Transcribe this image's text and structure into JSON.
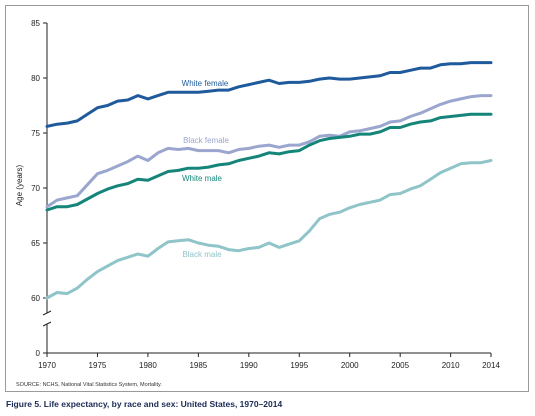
{
  "chart_data": {
    "type": "line",
    "ylabel": "Age (years)",
    "xlabel": "",
    "xlim": [
      1970,
      2014
    ],
    "ylim": [
      60,
      85
    ],
    "y_break": true,
    "y_tick_labels": [
      "0",
      "60",
      "65",
      "70",
      "75",
      "80",
      "85"
    ],
    "x_tick_labels": [
      "1970",
      "1975",
      "1980",
      "1985",
      "1990",
      "1995",
      "2000",
      "2005",
      "2010",
      "2014"
    ],
    "grid": false,
    "x": [
      1970,
      1971,
      1972,
      1973,
      1974,
      1975,
      1976,
      1977,
      1978,
      1979,
      1980,
      1981,
      1982,
      1983,
      1984,
      1985,
      1986,
      1987,
      1988,
      1989,
      1990,
      1991,
      1992,
      1993,
      1994,
      1995,
      1996,
      1997,
      1998,
      1999,
      2000,
      2001,
      2002,
      2003,
      2004,
      2005,
      2006,
      2007,
      2008,
      2009,
      2010,
      2011,
      2012,
      2013,
      2014
    ],
    "series": [
      {
        "name": "White female",
        "color": "#1f5a9c",
        "values": [
          75.6,
          75.8,
          75.9,
          76.1,
          76.7,
          77.3,
          77.5,
          77.9,
          78.0,
          78.4,
          78.1,
          78.4,
          78.7,
          78.7,
          78.7,
          78.7,
          78.8,
          78.9,
          78.9,
          79.2,
          79.4,
          79.6,
          79.8,
          79.5,
          79.6,
          79.6,
          79.7,
          79.9,
          80.0,
          79.9,
          79.9,
          80.0,
          80.1,
          80.2,
          80.5,
          80.5,
          80.7,
          80.9,
          80.9,
          81.2,
          81.3,
          81.3,
          81.4,
          81.4,
          81.4
        ]
      },
      {
        "name": "Black female",
        "color": "#9ba6cf",
        "values": [
          68.3,
          68.9,
          69.1,
          69.3,
          70.3,
          71.3,
          71.6,
          72.0,
          72.4,
          72.9,
          72.5,
          73.2,
          73.6,
          73.5,
          73.6,
          73.4,
          73.4,
          73.4,
          73.2,
          73.5,
          73.6,
          73.8,
          73.9,
          73.7,
          73.9,
          73.9,
          74.2,
          74.7,
          74.8,
          74.7,
          75.1,
          75.2,
          75.4,
          75.6,
          76.0,
          76.1,
          76.5,
          76.8,
          77.2,
          77.6,
          77.9,
          78.1,
          78.3,
          78.4,
          78.4
        ]
      },
      {
        "name": "White male",
        "color": "#15857a",
        "values": [
          68.0,
          68.3,
          68.3,
          68.5,
          69.0,
          69.5,
          69.9,
          70.2,
          70.4,
          70.8,
          70.7,
          71.1,
          71.5,
          71.6,
          71.8,
          71.8,
          71.9,
          72.1,
          72.2,
          72.5,
          72.7,
          72.9,
          73.2,
          73.1,
          73.3,
          73.4,
          73.9,
          74.3,
          74.5,
          74.6,
          74.7,
          74.9,
          74.9,
          75.1,
          75.5,
          75.5,
          75.8,
          76.0,
          76.1,
          76.4,
          76.5,
          76.6,
          76.7,
          76.7,
          76.7
        ]
      },
      {
        "name": "Black male",
        "color": "#8fc4c8",
        "values": [
          60.0,
          60.5,
          60.4,
          60.9,
          61.7,
          62.4,
          62.9,
          63.4,
          63.7,
          64.0,
          63.8,
          64.5,
          65.1,
          65.2,
          65.3,
          65.0,
          64.8,
          64.7,
          64.4,
          64.3,
          64.5,
          64.6,
          65.0,
          64.6,
          64.9,
          65.2,
          66.1,
          67.2,
          67.6,
          67.8,
          68.2,
          68.5,
          68.7,
          68.9,
          69.4,
          69.5,
          69.9,
          70.2,
          70.8,
          71.4,
          71.8,
          72.2,
          72.3,
          72.3,
          72.5
        ]
      }
    ]
  },
  "source": "SOURCE: NCHS, National Vital Statistics System, Mortality.",
  "caption": "Figure 5. Life expectancy, by race and sex: United States, 1970–2014"
}
